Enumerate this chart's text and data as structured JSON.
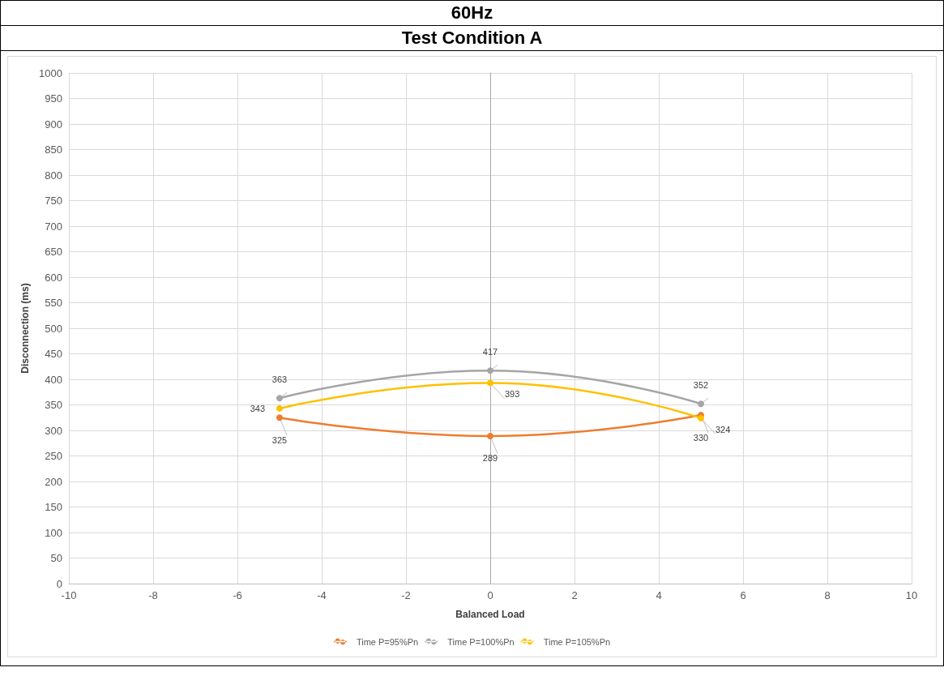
{
  "chart_data": {
    "type": "line",
    "title": "60Hz",
    "subtitle": "Test Condition A",
    "xlabel": "Balanced Load",
    "ylabel": "Disconnection (ms)",
    "x": [
      -5,
      0,
      5
    ],
    "series": [
      {
        "name": "Time P=95%Pn",
        "color": "#ed7d31",
        "values": [
          325,
          289,
          330
        ]
      },
      {
        "name": "Time P=100%Pn",
        "color": "#a5a5a5",
        "values": [
          363,
          417,
          352
        ]
      },
      {
        "name": "Time P=105%Pn",
        "color": "#ffc000",
        "values": [
          343,
          393,
          324
        ]
      }
    ],
    "xlim": [
      -10,
      10
    ],
    "xticks": [
      -10,
      -8,
      -6,
      -4,
      -2,
      0,
      2,
      4,
      6,
      8,
      10
    ],
    "ylim": [
      0,
      1000
    ],
    "yticks": [
      0,
      50,
      100,
      150,
      200,
      250,
      300,
      350,
      400,
      450,
      500,
      550,
      600,
      650,
      700,
      750,
      800,
      850,
      900,
      950,
      1000
    ],
    "grid": true,
    "legend": "bottom",
    "marker": "circle",
    "line_style": "solid",
    "data_labels": true
  }
}
